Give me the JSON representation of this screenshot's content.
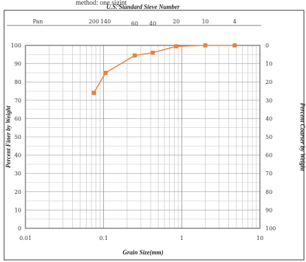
{
  "cutoff_text": "method: one sigint",
  "chart_data": {
    "type": "line",
    "x_scale": "log",
    "xlim": [
      0.01,
      10
    ],
    "ylim": [
      0,
      100
    ],
    "y2lim": [
      0,
      100
    ],
    "grid": true,
    "title": "U.S. Standard Sieve Number",
    "xlabel": "Grain Size(mm)",
    "ylabel": "Percent Finer by Weight",
    "y2label": "Percent Coarser by Weight",
    "x_ticks": [
      "0.01",
      "0.1",
      "1",
      "10"
    ],
    "y_ticks": [
      "0",
      "10",
      "20",
      "30",
      "40",
      "50",
      "60",
      "70",
      "80",
      "90",
      "100"
    ],
    "y2_ticks": [
      "100",
      "90",
      "80",
      "70",
      "60",
      "50",
      "40",
      "30",
      "20",
      "10",
      "0"
    ],
    "sieve_labels": [
      {
        "label": "Pan",
        "size": null
      },
      {
        "label": "200",
        "size": 0.075
      },
      {
        "label": "140",
        "size": 0.106
      },
      {
        "label": "60",
        "size": 0.25
      },
      {
        "label": "40",
        "size": 0.425
      },
      {
        "label": "20",
        "size": 0.85
      },
      {
        "label": "10",
        "size": 2.0
      },
      {
        "label": "4",
        "size": 4.75
      }
    ],
    "series": [
      {
        "color": "#E8843C",
        "x": [
          0.075,
          0.106,
          0.25,
          0.425,
          0.85,
          2.0,
          4.75
        ],
        "y": [
          74,
          85,
          94.5,
          96,
          99.5,
          100,
          100
        ]
      }
    ]
  }
}
